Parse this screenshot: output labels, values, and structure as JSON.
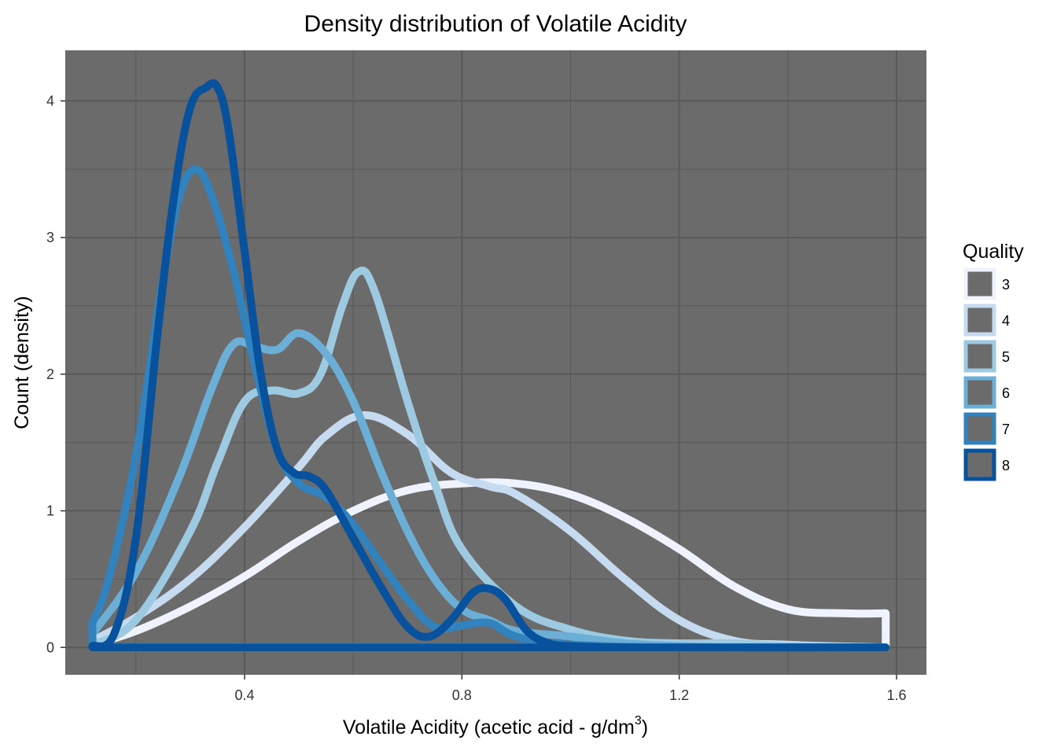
{
  "chart_data": {
    "type": "line",
    "title": "Density distribution of Volatile Acidity",
    "xlabel": "Volatile Acidity (acetic acid - g/dm",
    "xlabel_superscript": "3",
    "xlabel_close": ")",
    "ylabel": "Count (density)",
    "xlim": [
      0.07,
      1.655
    ],
    "ylim": [
      -0.2,
      4.37
    ],
    "x_ticks": [
      0.4,
      0.8,
      1.2,
      1.6
    ],
    "x_tick_labels": [
      "0.4",
      "0.8",
      "1.2",
      "1.6"
    ],
    "y_ticks": [
      0,
      1,
      2,
      3,
      4
    ],
    "y_tick_labels": [
      "0",
      "1",
      "2",
      "3",
      "4"
    ],
    "x_minor": [
      0.2,
      0.6,
      1.0,
      1.4
    ],
    "y_minor": [
      0.5,
      1.5,
      2.5,
      3.5
    ],
    "grid": true,
    "panel_background": "#6b6b6b",
    "grid_color": "#595959",
    "legend": {
      "title": "Quality",
      "position": "right",
      "labels": [
        "3",
        "4",
        "5",
        "6",
        "7",
        "8"
      ]
    },
    "series": [
      {
        "name": "3",
        "color": "#eff3ff",
        "x": [
          0.12,
          0.2,
          0.3,
          0.4,
          0.5,
          0.6,
          0.7,
          0.8,
          0.9,
          1.0,
          1.1,
          1.2,
          1.3,
          1.4,
          1.5,
          1.58
        ],
        "y": [
          0.02,
          0.12,
          0.3,
          0.52,
          0.78,
          1.0,
          1.15,
          1.2,
          1.2,
          1.12,
          0.95,
          0.72,
          0.45,
          0.28,
          0.25,
          0.25
        ]
      },
      {
        "name": "4",
        "color": "#c6dbef",
        "x": [
          0.12,
          0.2,
          0.3,
          0.4,
          0.5,
          0.55,
          0.62,
          0.7,
          0.78,
          0.85,
          0.9,
          1.0,
          1.1,
          1.2,
          1.3,
          1.4,
          1.58
        ],
        "y": [
          0.05,
          0.22,
          0.5,
          0.88,
          1.32,
          1.55,
          1.7,
          1.56,
          1.28,
          1.18,
          1.12,
          0.85,
          0.5,
          0.2,
          0.05,
          0.02,
          0.0
        ]
      },
      {
        "name": "5",
        "color": "#9ecae1",
        "x": [
          0.12,
          0.2,
          0.3,
          0.35,
          0.4,
          0.45,
          0.5,
          0.54,
          0.58,
          0.61,
          0.64,
          0.7,
          0.75,
          0.8,
          0.9,
          1.0,
          1.1,
          1.2,
          1.3,
          1.4,
          1.58
        ],
        "y": [
          0.02,
          0.2,
          0.85,
          1.35,
          1.8,
          1.88,
          1.86,
          2.0,
          2.5,
          2.75,
          2.6,
          1.8,
          1.2,
          0.72,
          0.3,
          0.13,
          0.05,
          0.03,
          0.03,
          0.01,
          0.0
        ]
      },
      {
        "name": "6",
        "color": "#6baed6",
        "x": [
          0.12,
          0.2,
          0.28,
          0.34,
          0.38,
          0.42,
          0.46,
          0.5,
          0.55,
          0.6,
          0.65,
          0.7,
          0.75,
          0.8,
          0.85,
          0.9,
          1.0,
          1.1,
          1.2,
          1.3,
          1.4,
          1.58
        ],
        "y": [
          0.1,
          0.55,
          1.25,
          1.9,
          2.22,
          2.2,
          2.18,
          2.3,
          2.15,
          1.8,
          1.3,
          0.85,
          0.5,
          0.28,
          0.2,
          0.12,
          0.08,
          0.03,
          0.01,
          0.0,
          0.0,
          0.0
        ]
      },
      {
        "name": "7",
        "color": "#3182bd",
        "x": [
          0.12,
          0.15,
          0.2,
          0.25,
          0.28,
          0.31,
          0.34,
          0.38,
          0.42,
          0.46,
          0.5,
          0.55,
          0.6,
          0.65,
          0.7,
          0.75,
          0.8,
          0.85,
          0.9,
          1.0,
          1.2,
          1.58
        ],
        "y": [
          0.18,
          0.5,
          1.4,
          2.7,
          3.3,
          3.5,
          3.3,
          2.75,
          2.05,
          1.45,
          1.2,
          1.1,
          0.9,
          0.62,
          0.35,
          0.15,
          0.16,
          0.18,
          0.08,
          0.02,
          0.0,
          0.0
        ]
      },
      {
        "name": "8",
        "color": "#08519c",
        "x": [
          0.12,
          0.16,
          0.2,
          0.24,
          0.27,
          0.3,
          0.33,
          0.35,
          0.37,
          0.4,
          0.43,
          0.46,
          0.49,
          0.52,
          0.55,
          0.6,
          0.65,
          0.7,
          0.74,
          0.78,
          0.82,
          0.85,
          0.88,
          0.92,
          0.96,
          1.0,
          1.1,
          1.3,
          1.58
        ],
        "y": [
          0.01,
          0.1,
          0.8,
          2.3,
          3.3,
          3.95,
          4.1,
          4.1,
          3.8,
          2.9,
          2.0,
          1.45,
          1.28,
          1.25,
          1.15,
          0.8,
          0.45,
          0.15,
          0.08,
          0.2,
          0.4,
          0.43,
          0.35,
          0.12,
          0.03,
          0.01,
          0.0,
          0.0,
          0.0
        ]
      }
    ]
  }
}
